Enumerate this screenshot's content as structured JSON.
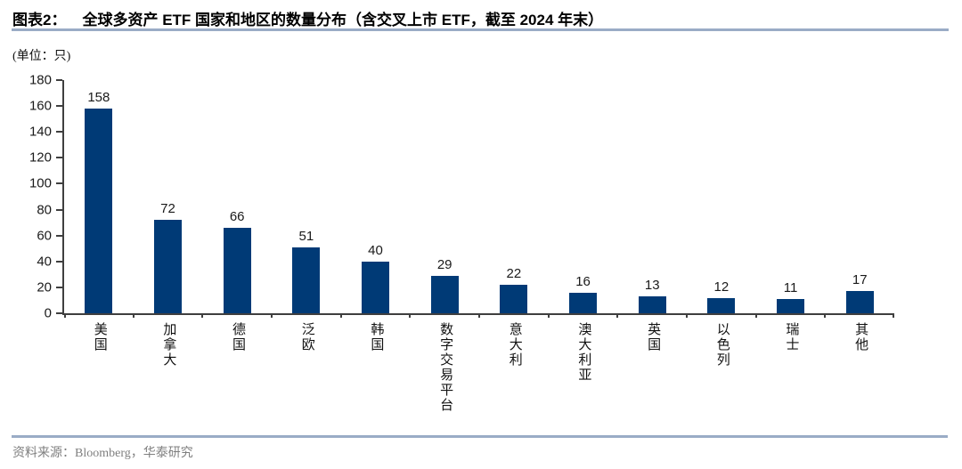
{
  "header": {
    "figure_label": "图表2：",
    "title": "全球多资产 ETF 国家和地区的数量分布（含交叉上市 ETF，截至 2024 年末）",
    "unit_label": "(单位：只)"
  },
  "chart_data": {
    "type": "bar",
    "title": "全球多资产 ETF 国家和地区的数量分布（含交叉上市 ETF，截至 2024 年末）",
    "categories": [
      "美国",
      "加拿大",
      "德国",
      "泛欧",
      "韩国",
      "数字交易平台",
      "意大利",
      "澳大利亚",
      "英国",
      "以色列",
      "瑞士",
      "其他"
    ],
    "values": [
      158,
      72,
      66,
      51,
      40,
      29,
      22,
      16,
      13,
      12,
      11,
      17
    ],
    "xlabel": "",
    "ylabel": "(单位：只)",
    "ylim": [
      0,
      180
    ],
    "yticks": [
      0,
      20,
      40,
      60,
      80,
      100,
      120,
      140,
      160,
      180
    ],
    "grid": false,
    "legend": null,
    "value_labels": true,
    "bar_color": "#003a76"
  },
  "footer": {
    "source_label": "资料来源：Bloomberg，华泰研究"
  },
  "colors": {
    "bar": "#003a76",
    "divider_rule": "#9aacc6",
    "axis": "#3f3f3f",
    "source_text": "#7f7f7f",
    "title_text": "#000000"
  }
}
